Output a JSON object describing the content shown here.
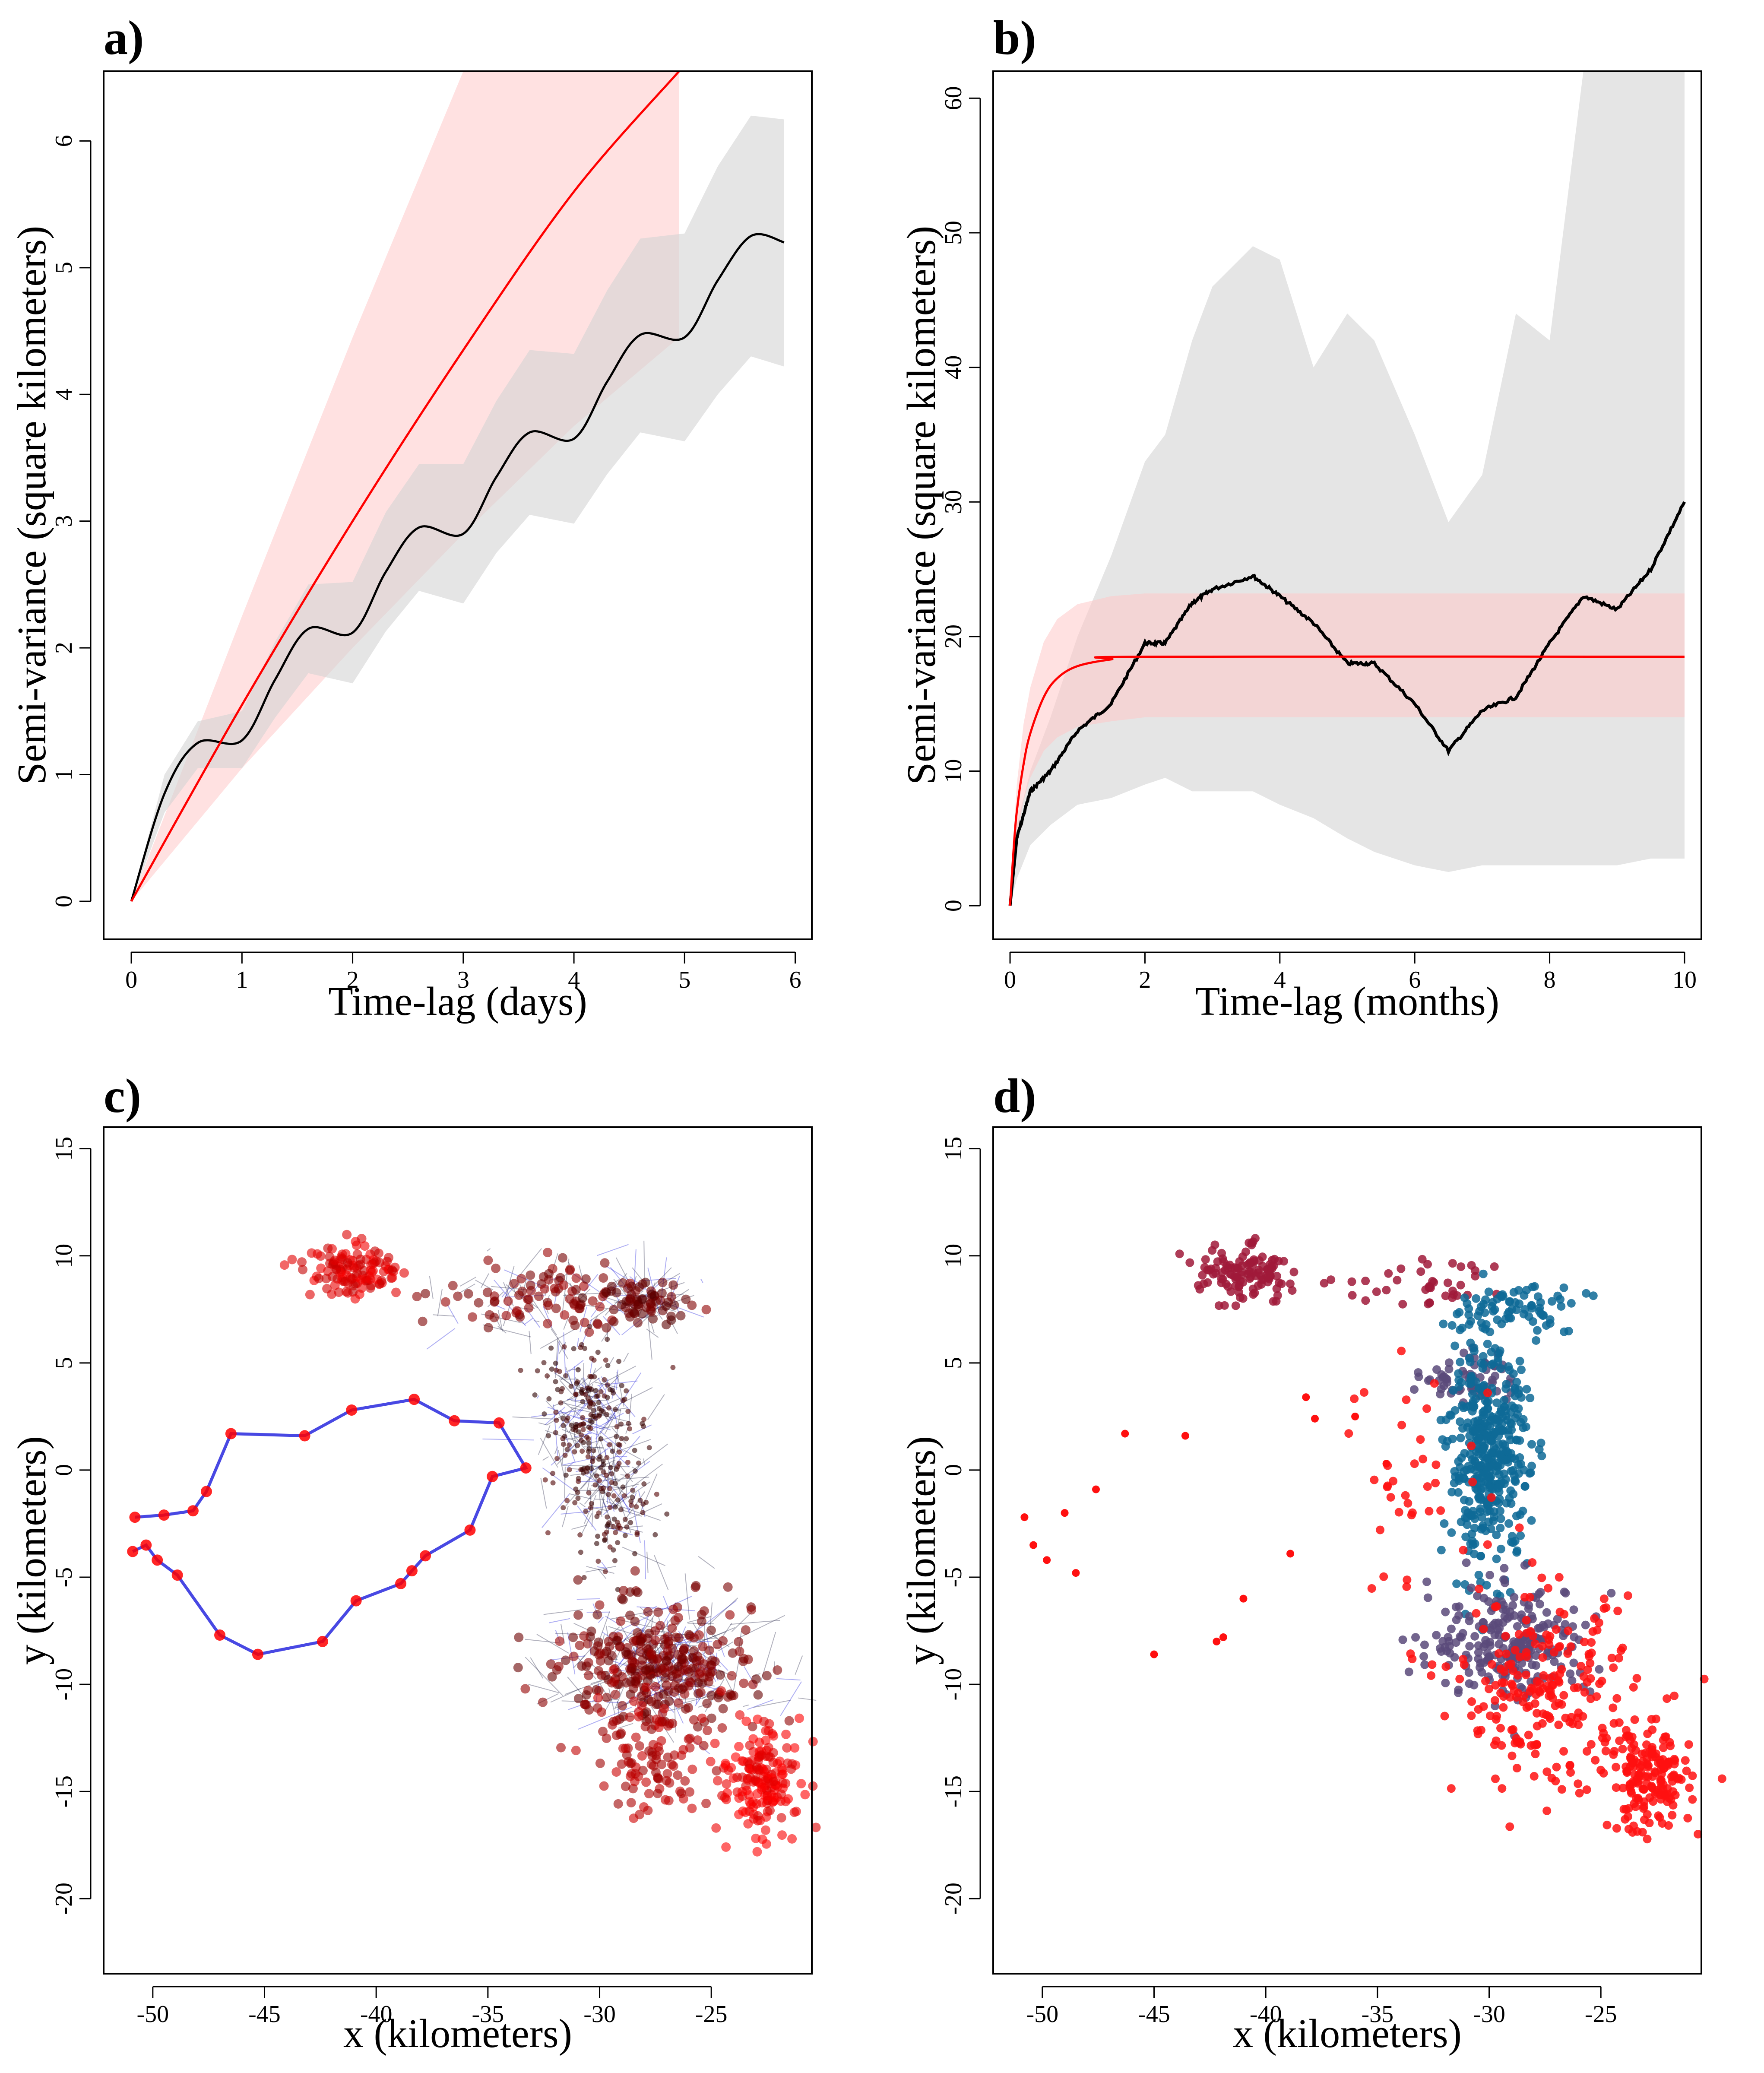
{
  "chart_data": [
    {
      "panel_label": "a)",
      "type": "line",
      "xlabel": "Time-lag (days)",
      "ylabel": "Semi-variance (square kilometers)",
      "xlim": [
        -0.25,
        6.15
      ],
      "ylim": [
        -0.3,
        6.55
      ],
      "xticks": [
        0,
        1,
        2,
        3,
        4,
        5,
        6
      ],
      "yticks": [
        0,
        1,
        2,
        3,
        4,
        5,
        6
      ],
      "colors": {
        "empirical": "#000000",
        "empirical_ci": "#d3d3d3",
        "model": "#ff0000",
        "model_ci": "#ffc8c8"
      },
      "series": [
        {
          "role": "empirical",
          "x": [
            0,
            0.3,
            0.6,
            1.0,
            1.3,
            1.6,
            2.0,
            2.3,
            2.6,
            3.0,
            3.3,
            3.6,
            4.0,
            4.3,
            4.6,
            5.0,
            5.3,
            5.6,
            5.9
          ],
          "y": [
            0,
            0.85,
            1.25,
            1.27,
            1.75,
            2.15,
            2.12,
            2.6,
            2.95,
            2.9,
            3.35,
            3.7,
            3.65,
            4.1,
            4.47,
            4.45,
            4.9,
            5.25,
            5.2
          ],
          "ci_low": [
            0,
            0.7,
            1.05,
            1.05,
            1.45,
            1.8,
            1.72,
            2.13,
            2.45,
            2.35,
            2.75,
            3.05,
            2.98,
            3.37,
            3.7,
            3.63,
            4.0,
            4.3,
            4.22
          ],
          "ci_high": [
            0,
            1.0,
            1.42,
            1.5,
            2.05,
            2.5,
            2.52,
            3.07,
            3.45,
            3.45,
            3.95,
            4.35,
            4.32,
            4.82,
            5.23,
            5.27,
            5.8,
            6.2,
            6.17
          ]
        },
        {
          "role": "model",
          "x": [
            0,
            1,
            2,
            3,
            4,
            4.95
          ],
          "y": [
            0,
            1.55,
            3.0,
            4.35,
            5.6,
            6.55
          ],
          "ci_low": [
            0,
            1.05,
            2.0,
            2.9,
            3.75,
            4.45
          ],
          "ci_high": [
            0,
            2.25,
            4.45,
            6.55,
            6.55,
            6.55
          ]
        }
      ]
    },
    {
      "panel_label": "b)",
      "type": "line",
      "xlabel": "Time-lag (months)",
      "ylabel": "Semi-variance (square kilometers)",
      "xlim": [
        -0.25,
        10.25
      ],
      "ylim": [
        -2.5,
        62
      ],
      "xticks": [
        0,
        2,
        4,
        6,
        8,
        10
      ],
      "yticks": [
        0,
        10,
        20,
        30,
        40,
        50,
        60
      ],
      "colors": {
        "empirical": "#000000",
        "empirical_ci": "#d3d3d3",
        "model": "#ff0000",
        "model_ci": "#ffc8c8"
      },
      "series": [
        {
          "role": "empirical",
          "x": [
            0,
            0.1,
            0.3,
            0.6,
            1.0,
            1.5,
            2.0,
            2.3,
            2.7,
            3.0,
            3.6,
            4.0,
            4.5,
            5.0,
            5.4,
            6.0,
            6.5,
            7.0,
            7.5,
            8.0,
            8.5,
            9.0,
            9.5,
            10.0
          ],
          "y": [
            0,
            5,
            8.5,
            10,
            13,
            15,
            19.5,
            19.5,
            22.5,
            23.5,
            24.5,
            23,
            21,
            18,
            18,
            15,
            11.5,
            14.5,
            15.5,
            19.5,
            23,
            22,
            25,
            30
          ],
          "ci_low": [
            0,
            2,
            4.5,
            6,
            7.5,
            8,
            9,
            9.5,
            8.5,
            8.5,
            8.5,
            7.5,
            6.5,
            5,
            4,
            3,
            2.5,
            3,
            3,
            3,
            3,
            3,
            3.5,
            3.5
          ],
          "ci_high": [
            0,
            6,
            10,
            14,
            20,
            26,
            33,
            35,
            42,
            46,
            49,
            48,
            40,
            44,
            42,
            35,
            28.5,
            32,
            44,
            42,
            62,
            62,
            62,
            62
          ]
        },
        {
          "role": "model",
          "x": [
            0,
            0.05,
            0.1,
            0.2,
            0.3,
            0.5,
            0.7,
            1.0,
            1.5,
            2.0,
            10.0
          ],
          "y": [
            0,
            4,
            7,
            10.5,
            12.8,
            15.5,
            16.9,
            17.8,
            18.3,
            18.5,
            18.5
          ],
          "ci_low": [
            0,
            3,
            5.2,
            7.8,
            9.5,
            11.5,
            12.5,
            13.3,
            13.7,
            14.0,
            14.0
          ],
          "ci_high": [
            0,
            5,
            9,
            13.5,
            16.2,
            19.6,
            21.3,
            22.4,
            23.0,
            23.2,
            23.2
          ]
        }
      ]
    },
    {
      "panel_label": "c)",
      "type": "scatter",
      "xlabel": "x (kilometers)",
      "ylabel": "y (kilometers)",
      "xlim": [
        -52.2,
        -20.5
      ],
      "ylim": [
        -23.5,
        16
      ],
      "xticks": [
        -50,
        -45,
        -40,
        -35,
        -30,
        -25
      ],
      "yticks": [
        -20,
        -15,
        -10,
        -5,
        0,
        5,
        10,
        15
      ],
      "colors": {
        "points_light": "#ff0000",
        "points_dark": "#2a0000",
        "links": "#1a1adc"
      },
      "track": {
        "x": [
          -50.8,
          -49.5,
          -48.2,
          -47.6,
          -46.5,
          -43.2,
          -41.1,
          -38.3,
          -36.5,
          -34.5,
          -33.3,
          -34.8,
          -35.8,
          -37.8,
          -38.4,
          -38.9,
          -40.9,
          -42.4,
          -45.3,
          -47.0,
          -48.9,
          -49.8,
          -50.3,
          -50.9
        ],
        "y": [
          -2.2,
          -2.1,
          -1.9,
          -1.0,
          1.7,
          1.6,
          2.8,
          3.3,
          2.3,
          2.2,
          0.1,
          -0.3,
          -2.8,
          -4.0,
          -4.7,
          -5.3,
          -6.1,
          -8.0,
          -8.6,
          -7.7,
          -4.9,
          -4.2,
          -3.5,
          -3.8
        ]
      },
      "clusters": [
        {
          "cx": -41.0,
          "cy": 9.3,
          "sx": 1.1,
          "sy": 0.6,
          "n": 120,
          "tone": 0.15
        },
        {
          "cx": -32.5,
          "cy": 8.0,
          "sx": 2.2,
          "sy": 0.9,
          "n": 90,
          "tone": 0.55
        },
        {
          "cx": -28.0,
          "cy": 7.9,
          "sx": 0.9,
          "sy": 0.5,
          "n": 60,
          "tone": 0.7
        },
        {
          "cx": -30.5,
          "cy": 2.5,
          "sx": 1.0,
          "sy": 1.8,
          "n": 170,
          "tone": 0.92
        },
        {
          "cx": -29.5,
          "cy": -1.5,
          "sx": 0.9,
          "sy": 1.5,
          "n": 90,
          "tone": 0.88
        },
        {
          "cx": -27.5,
          "cy": -9.0,
          "sx": 2.2,
          "sy": 1.3,
          "n": 300,
          "tone": 0.6
        },
        {
          "cx": -27.8,
          "cy": -13.5,
          "sx": 1.3,
          "sy": 1.5,
          "n": 110,
          "tone": 0.35
        },
        {
          "cx": -22.8,
          "cy": -14.5,
          "sx": 0.9,
          "sy": 1.2,
          "n": 170,
          "tone": 0.05
        }
      ]
    },
    {
      "panel_label": "d)",
      "type": "scatter",
      "xlabel": "x (kilometers)",
      "ylabel": "y (kilometers)",
      "xlim": [
        -52.2,
        -20.5
      ],
      "ylim": [
        -23.5,
        16
      ],
      "xticks": [
        -50,
        -45,
        -40,
        -35,
        -30,
        -25
      ],
      "yticks": [
        -20,
        -15,
        -10,
        -5,
        0,
        5,
        10,
        15
      ],
      "colors": {
        "cluster_red": "#ff1010",
        "cluster_blue": "#0e6a96",
        "cluster_purple": "#5a4a7a",
        "cluster_maroon": "#a01a3a"
      },
      "clusters": [
        {
          "cx": -41.0,
          "cy": 9.3,
          "sx": 1.1,
          "sy": 0.6,
          "n": 120,
          "color": "#a01a3a"
        },
        {
          "cx": -33.0,
          "cy": 8.6,
          "sx": 1.6,
          "sy": 0.6,
          "n": 40,
          "color": "#a01a3a"
        },
        {
          "cx": -29.0,
          "cy": 7.5,
          "sx": 1.6,
          "sy": 0.8,
          "n": 80,
          "color": "#0e6a96"
        },
        {
          "cx": -31.0,
          "cy": 4.3,
          "sx": 1.0,
          "sy": 0.6,
          "n": 60,
          "color": "#5a4a7a"
        },
        {
          "cx": -30.0,
          "cy": 0.5,
          "sx": 0.9,
          "sy": 2.4,
          "n": 420,
          "color": "#0e6a96"
        },
        {
          "cx": -29.0,
          "cy": -8.0,
          "sx": 1.8,
          "sy": 1.3,
          "n": 240,
          "color": "#5a4a7a"
        },
        {
          "cx": -27.5,
          "cy": -10.5,
          "sx": 2.0,
          "sy": 2.2,
          "n": 220,
          "color": "#ff1010"
        },
        {
          "cx": -22.8,
          "cy": -14.5,
          "sx": 0.9,
          "sy": 1.2,
          "n": 170,
          "color": "#ff1010"
        },
        {
          "cx": -33.0,
          "cy": -1.0,
          "sx": 2.0,
          "sy": 3.0,
          "n": 40,
          "color": "#ff1010"
        }
      ],
      "sparse_points": {
        "x": [
          -50.8,
          -50.4,
          -49.8,
          -49.0,
          -48.5,
          -47.6,
          -46.3,
          -45.0,
          -43.6,
          -42.2,
          -41.9,
          -41.0,
          -38.9,
          -38.2,
          -37.8,
          -36.0,
          -34.6
        ],
        "y": [
          -2.2,
          -3.5,
          -4.2,
          -2.0,
          -4.8,
          -0.9,
          1.7,
          -8.6,
          1.6,
          -8.0,
          -7.8,
          -6.0,
          -3.9,
          3.4,
          2.4,
          2.5,
          0.3
        ],
        "color": "#ff1010"
      }
    }
  ]
}
